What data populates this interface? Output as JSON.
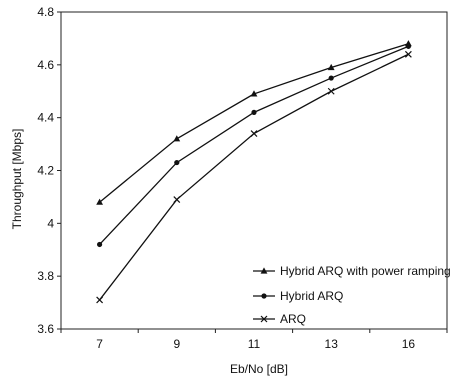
{
  "chart_data": {
    "type": "line",
    "title": "",
    "xlabel": "Eb/No [dB]",
    "ylabel": "Throughput [Mbps]",
    "categories": [
      "7",
      "9",
      "11",
      "13",
      "16"
    ],
    "ylim": [
      3.6,
      4.8
    ],
    "yticks": [
      "3.6",
      "3.8",
      "4",
      "4.2",
      "4.4",
      "4.6",
      "4.8"
    ],
    "grid": false,
    "legend_position": "bottom-right",
    "series": [
      {
        "name": "Hybrid ARQ with power ramping",
        "marker": "triangle",
        "values": [
          4.08,
          4.32,
          4.49,
          4.59,
          4.68
        ]
      },
      {
        "name": "Hybrid ARQ",
        "marker": "circle",
        "values": [
          3.92,
          4.23,
          4.42,
          4.55,
          4.67
        ]
      },
      {
        "name": "ARQ",
        "marker": "x",
        "values": [
          3.71,
          4.09,
          4.34,
          4.5,
          4.64
        ]
      }
    ]
  }
}
